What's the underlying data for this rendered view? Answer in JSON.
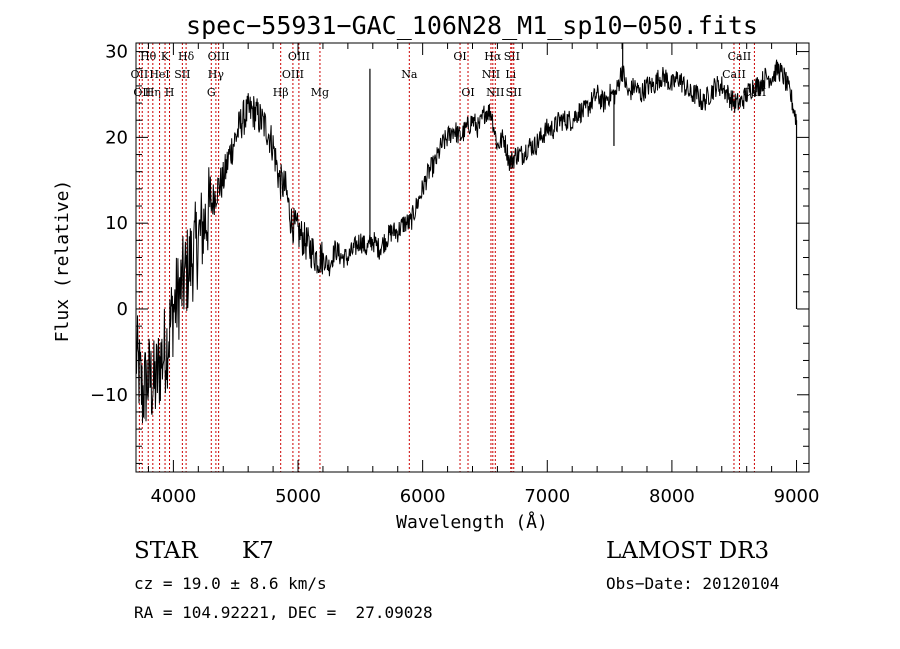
{
  "chart_data": {
    "type": "line",
    "title": "spec−55931−GAC_106N28_M1_sp10−050.fits",
    "xlabel": "Wavelength (Å)",
    "ylabel": "Flux (relative)",
    "xlim": [
      3700,
      9100
    ],
    "ylim": [
      -19,
      31
    ],
    "x_ticks": [
      4000,
      5000,
      6000,
      7000,
      8000,
      9000
    ],
    "y_ticks": [
      -10,
      0,
      10,
      20,
      30
    ],
    "y_tick_labels": [
      "−10",
      "0",
      "10",
      "20",
      "30"
    ],
    "grid": false,
    "series": [
      {
        "color": "#000000",
        "x": [
          3700,
          3750,
          3800,
          3850,
          3900,
          3950,
          4000,
          4050,
          4100,
          4150,
          4200,
          4250,
          4300,
          4350,
          4400,
          4450,
          4500,
          4550,
          4600,
          4650,
          4700,
          4750,
          4800,
          4850,
          4900,
          4950,
          5000,
          5050,
          5100,
          5150,
          5200,
          5250,
          5300,
          5350,
          5400,
          5450,
          5500,
          5550,
          5600,
          5650,
          5700,
          5750,
          5800,
          5850,
          5900,
          5950,
          6000,
          6050,
          6100,
          6150,
          6200,
          6250,
          6300,
          6350,
          6400,
          6450,
          6500,
          6550,
          6600,
          6650,
          6700,
          6750,
          6800,
          6850,
          6900,
          6950,
          7000,
          7050,
          7100,
          7150,
          7200,
          7250,
          7300,
          7350,
          7400,
          7450,
          7500,
          7550,
          7600,
          7650,
          7700,
          7750,
          7800,
          7850,
          7900,
          7950,
          8000,
          8050,
          8100,
          8150,
          8200,
          8250,
          8300,
          8350,
          8400,
          8450,
          8500,
          8550,
          8600,
          8650,
          8700,
          8750,
          8800,
          8850,
          8900,
          8950,
          9000
        ],
        "y": [
          -5,
          -10,
          -8,
          -9,
          -6,
          -4,
          0,
          2,
          4,
          6,
          8,
          10,
          12,
          14,
          15,
          18,
          20,
          22,
          23,
          23,
          22,
          21,
          19,
          15,
          14,
          10,
          9,
          8,
          7,
          6,
          6,
          5,
          7,
          6,
          6,
          7,
          8,
          7,
          8,
          7,
          8,
          9,
          9,
          10,
          10,
          12,
          14,
          16,
          17,
          19,
          20,
          21,
          20,
          21,
          22,
          21,
          23,
          23,
          19,
          20,
          17,
          18,
          18,
          19,
          19,
          20,
          21,
          21,
          22,
          22,
          22,
          23,
          23,
          24,
          25,
          24,
          25,
          25,
          28,
          25,
          26,
          25,
          26,
          26,
          27,
          27,
          26,
          27,
          26,
          25,
          25,
          24,
          25,
          26,
          26,
          25,
          24,
          24,
          25,
          26,
          26,
          27,
          27,
          28,
          27,
          25,
          22
        ]
      }
    ],
    "spikes": [
      {
        "x": 5577,
        "y": 28
      },
      {
        "x": 7605,
        "y": 31
      },
      {
        "x": 6865,
        "y": 19.5
      },
      {
        "x": 7535,
        "y": 19
      }
    ],
    "line_markers": [
      {
        "x": 3727,
        "labels": [
          "OII"
        ],
        "row": 2
      },
      {
        "x": 3750,
        "labels": [
          "OII"
        ],
        "row": 3
      },
      {
        "x": 3798,
        "labels": [
          "Hθ"
        ],
        "row": 1
      },
      {
        "x": 3835,
        "labels": [
          "Hη"
        ],
        "row": 3
      },
      {
        "x": 3889,
        "labels": [
          "HeI"
        ],
        "row": 2
      },
      {
        "x": 3933,
        "labels": [
          "K"
        ],
        "row": 1
      },
      {
        "x": 3969,
        "labels": [
          "H"
        ],
        "row": 3
      },
      {
        "x": 4072,
        "labels": [
          "SII"
        ],
        "row": 2
      },
      {
        "x": 4102,
        "labels": [
          "Hδ"
        ],
        "row": 1
      },
      {
        "x": 4304,
        "labels": [
          "G"
        ],
        "row": 3
      },
      {
        "x": 4341,
        "labels": [
          "Hγ"
        ],
        "row": 2
      },
      {
        "x": 4363,
        "labels": [
          "OIII"
        ],
        "row": 1
      },
      {
        "x": 4861,
        "labels": [
          "Hβ"
        ],
        "row": 3
      },
      {
        "x": 4959,
        "labels": [
          "OIII"
        ],
        "row": 2
      },
      {
        "x": 5007,
        "labels": [
          "OIII"
        ],
        "row": 1
      },
      {
        "x": 5176,
        "labels": [
          "Mg"
        ],
        "row": 3
      },
      {
        "x": 5893,
        "labels": [
          "Na"
        ],
        "row": 2
      },
      {
        "x": 6300,
        "labels": [
          "OI"
        ],
        "row": 1
      },
      {
        "x": 6364,
        "labels": [
          "OI"
        ],
        "row": 3
      },
      {
        "x": 6548,
        "labels": [
          "NII"
        ],
        "row": 2
      },
      {
        "x": 6563,
        "labels": [
          "Hα"
        ],
        "row": 1
      },
      {
        "x": 6583,
        "labels": [
          "NII"
        ],
        "row": 3
      },
      {
        "x": 6707,
        "labels": [
          "Li"
        ],
        "row": 2
      },
      {
        "x": 6716,
        "labels": [
          "SII"
        ],
        "row": 1
      },
      {
        "x": 6731,
        "labels": [
          "SII"
        ],
        "row": 3
      },
      {
        "x": 8498,
        "labels": [
          "CaII"
        ],
        "row": 2
      },
      {
        "x": 8542,
        "labels": [
          "CaII"
        ],
        "row": 1
      },
      {
        "x": 8662,
        "labels": [
          "CaII"
        ],
        "row": 3
      }
    ]
  },
  "info": {
    "object_class": "STAR",
    "subclass": "K7",
    "survey": "LAMOST DR3",
    "cz": "cz = 19.0 ± 8.6 km/s",
    "obs_date": "Obs−Date: 20120104",
    "coords": "RA = 104.92221, DEC =  27.09028"
  },
  "colors": {
    "spectrum": "#000000",
    "marker_line": "#cc0000",
    "axes": "#000000"
  }
}
